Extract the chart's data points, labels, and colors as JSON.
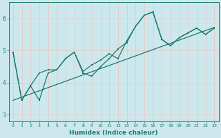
{
  "xlabel": "Humidex (Indice chaleur)",
  "xlim": [
    -0.5,
    23.5
  ],
  "ylim": [
    2.8,
    6.5
  ],
  "yticks": [
    3,
    4,
    5,
    6
  ],
  "xticks": [
    0,
    1,
    2,
    3,
    4,
    5,
    6,
    7,
    8,
    9,
    10,
    11,
    12,
    13,
    14,
    15,
    16,
    17,
    18,
    19,
    20,
    21,
    22,
    23
  ],
  "bg_color": "#cce8ec",
  "line_color": "#1a7a6e",
  "grid_color": "#e8c8c8",
  "line1_y": [
    4.95,
    3.45,
    3.9,
    3.45,
    4.3,
    4.4,
    4.75,
    4.95,
    4.3,
    4.2,
    4.5,
    4.75,
    5.05,
    5.25,
    5.75,
    6.1,
    6.2,
    5.35,
    5.15,
    5.4,
    5.55,
    5.7,
    5.5,
    5.7
  ],
  "line2_y": [
    4.95,
    3.45,
    3.9,
    4.3,
    4.4,
    4.4,
    4.75,
    4.95,
    4.35,
    4.55,
    4.7,
    4.9,
    4.75,
    5.3,
    5.75,
    6.1,
    6.2,
    5.35,
    5.15,
    5.4,
    5.55,
    5.7,
    5.5,
    5.7
  ],
  "trend_x": [
    0,
    23
  ],
  "trend_y": [
    3.45,
    5.72
  ]
}
